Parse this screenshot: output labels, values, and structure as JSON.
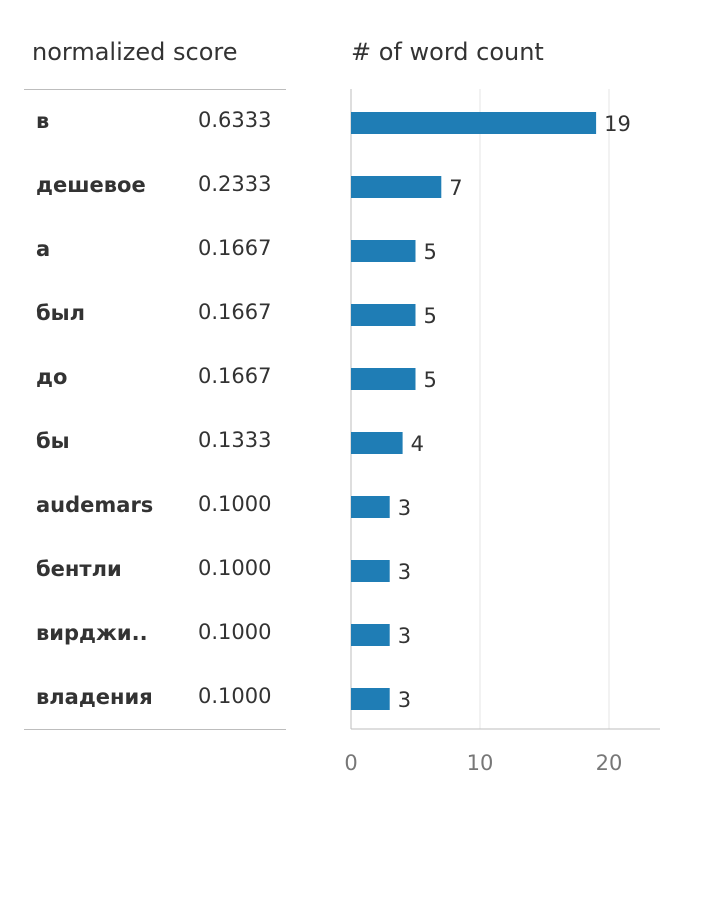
{
  "header": {
    "score_label": "normalized score",
    "count_label": "# of word count"
  },
  "colors": {
    "bar": "#1f7db5",
    "grid": "#e6e6e6",
    "axis": "#bdbdbd",
    "tick_text": "#777777"
  },
  "chart_data": {
    "type": "bar",
    "orientation": "horizontal",
    "categories": [
      "в",
      "дешевое",
      "а",
      "был",
      "до",
      "бы",
      "audemars",
      "бентли",
      "вирджи..",
      "владения"
    ],
    "scores": [
      "0.6333",
      "0.2333",
      "0.1667",
      "0.1667",
      "0.1667",
      "0.1333",
      "0.1000",
      "0.1000",
      "0.1000",
      "0.1000"
    ],
    "values": [
      19,
      7,
      5,
      5,
      5,
      4,
      3,
      3,
      3,
      3
    ],
    "xlim": [
      0,
      24
    ],
    "xticks": [
      0,
      10,
      20
    ],
    "grid": true,
    "data_labels": true
  }
}
